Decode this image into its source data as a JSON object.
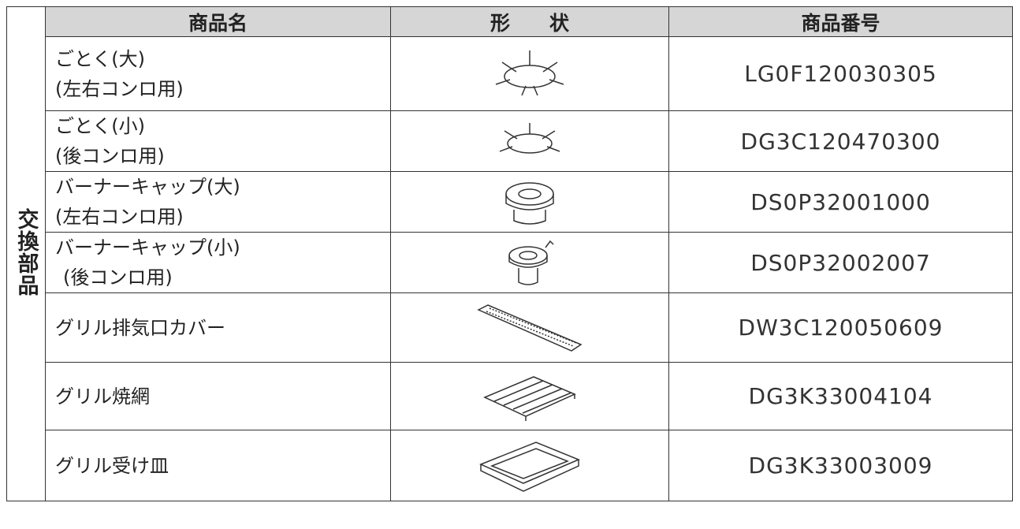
{
  "side_label": "交換部品",
  "table": {
    "headers": [
      "商品名",
      "形　　状",
      "商品番号"
    ],
    "rows": [
      {
        "name": [
          "ごとく(大)",
          "(左右コンロ用)"
        ],
        "number": "LG0F120030305"
      },
      {
        "name": [
          "ごとく(小)",
          "(後コンロ用)"
        ],
        "number": "DG3C120470300"
      },
      {
        "name": [
          "バーナーキャップ(大)",
          "(左右コンロ用)"
        ],
        "number": "DS0P32001000"
      },
      {
        "name": [
          "バーナーキャップ(小)",
          "(後コンロ用)"
        ],
        "number": "DS0P32002007"
      },
      {
        "name": [
          "グリル排気口カバー"
        ],
        "number": "DW3C120050609"
      },
      {
        "name": [
          "グリル焼網"
        ],
        "number": "DG3K33004104"
      },
      {
        "name": [
          "グリル受け皿"
        ],
        "number": "DG3K33003009"
      }
    ]
  }
}
